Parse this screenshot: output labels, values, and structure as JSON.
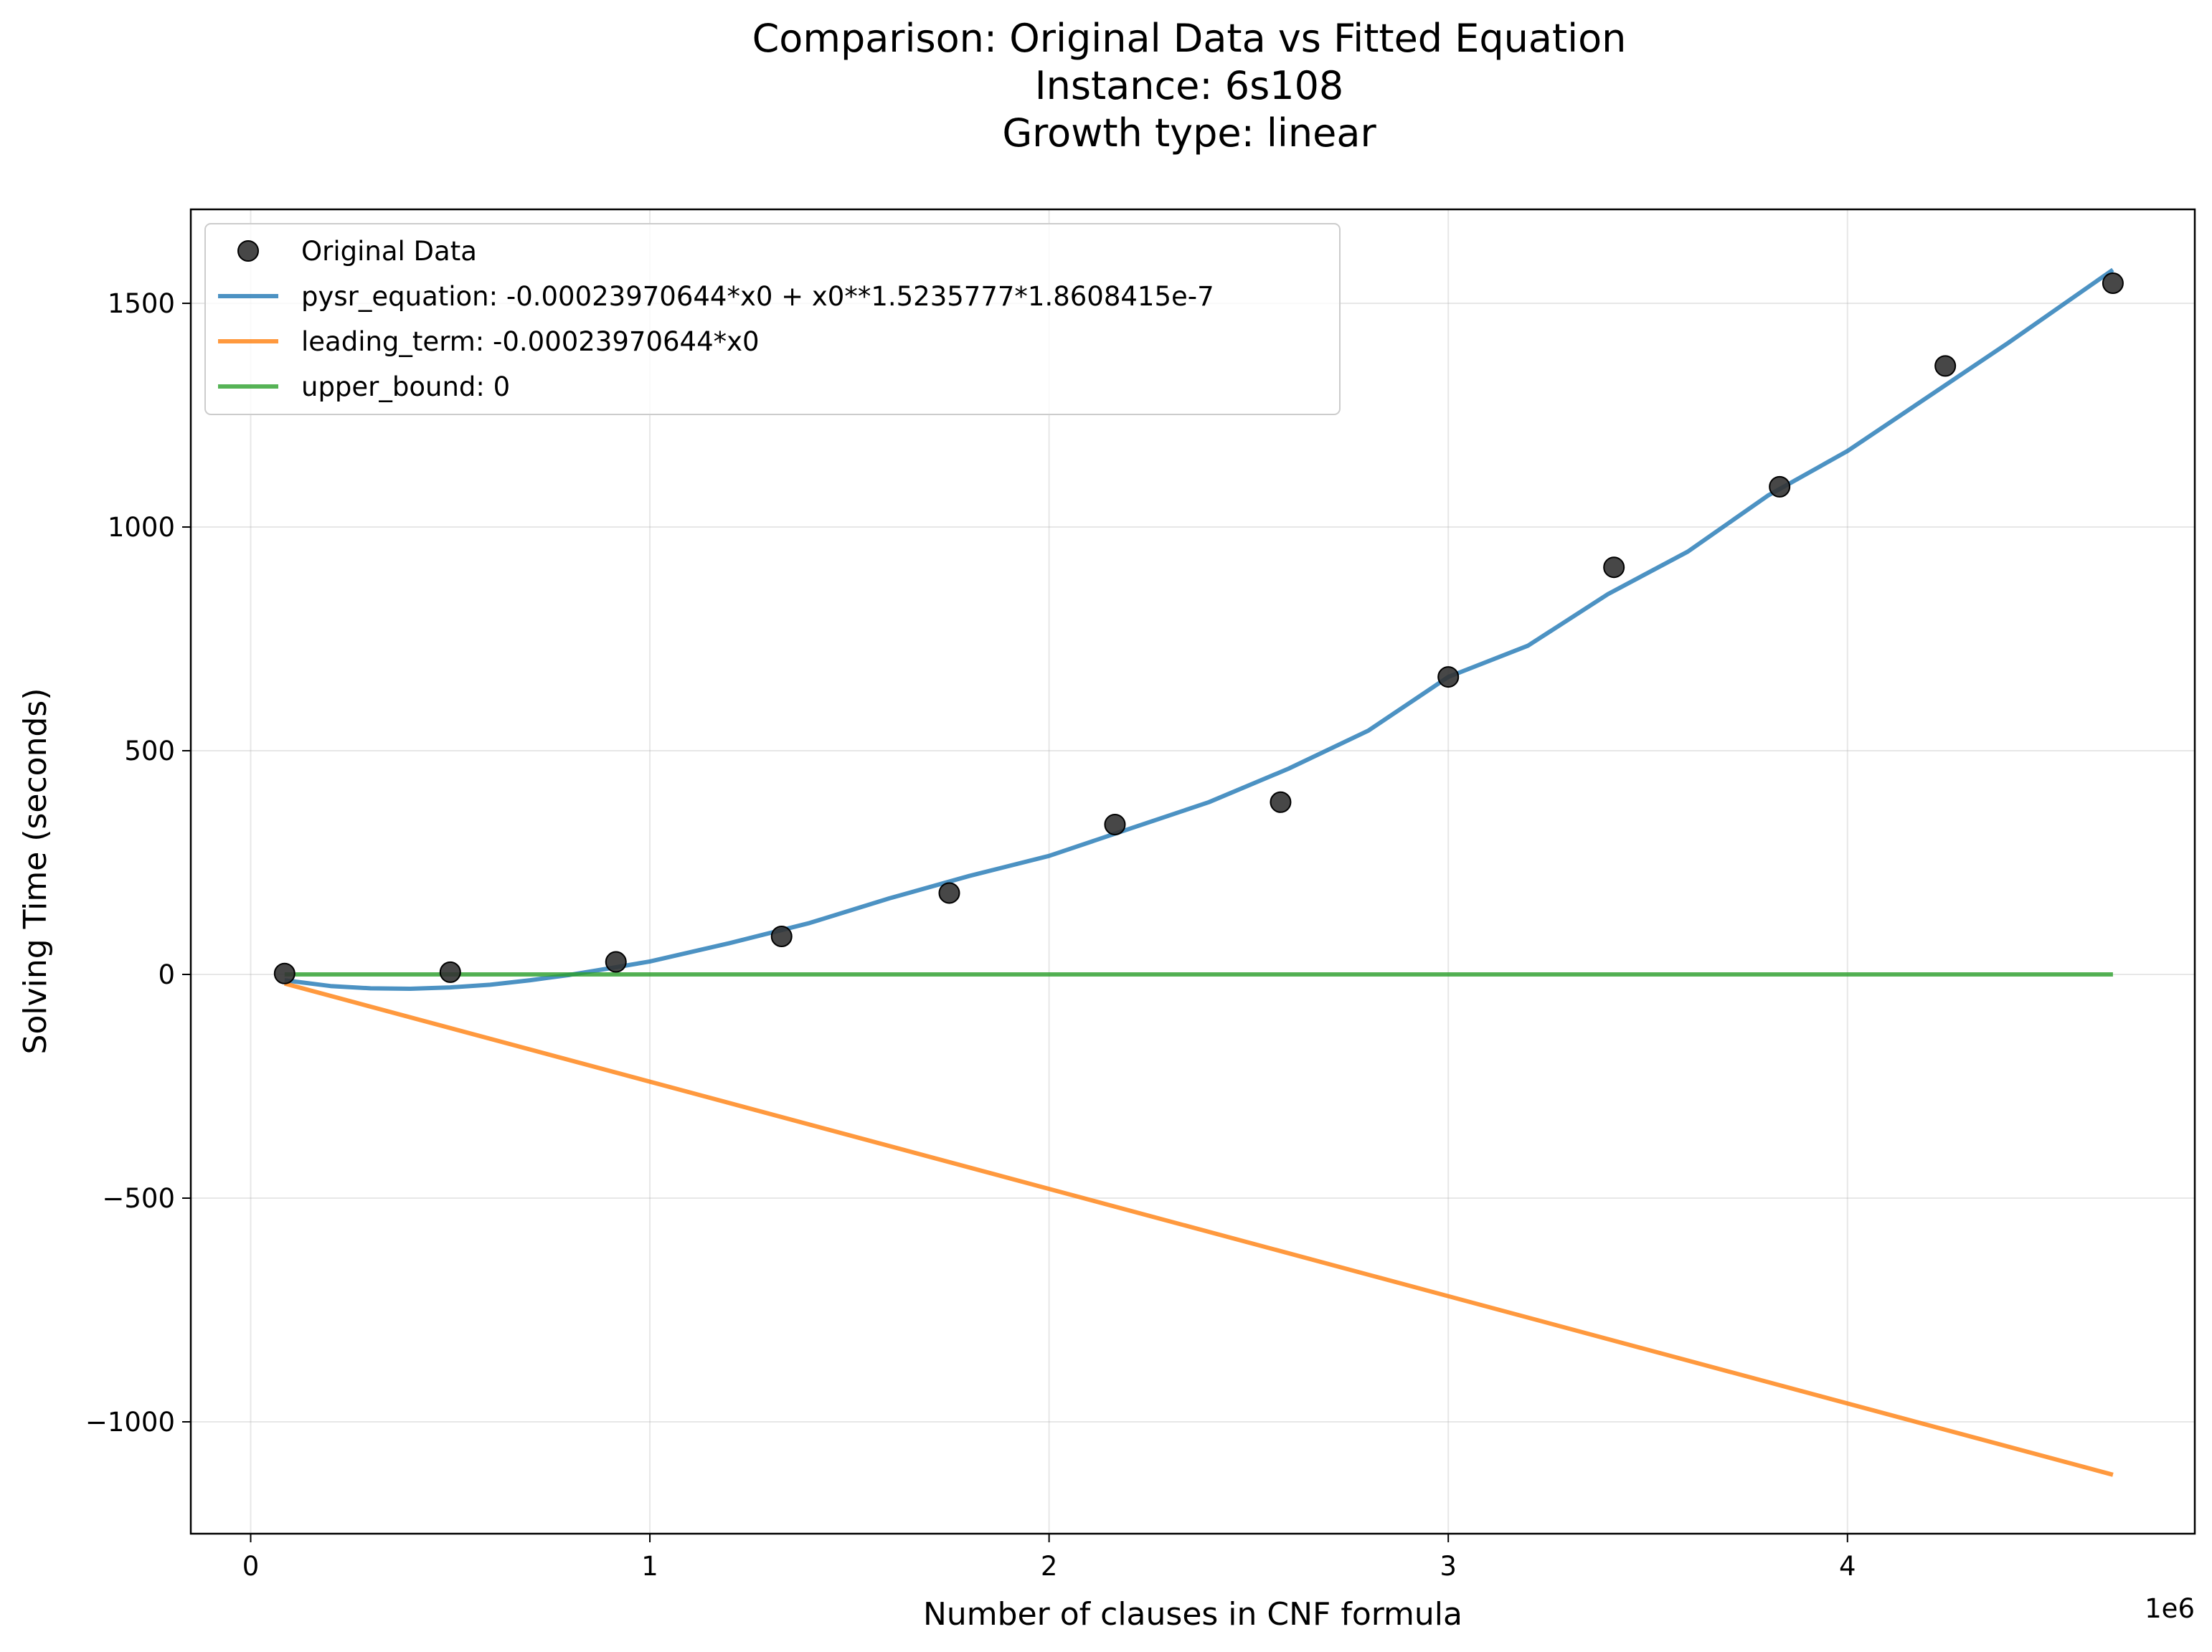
{
  "chart_data": {
    "type": "line",
    "title_lines": [
      "Comparison: Original Data vs Fitted Equation",
      "Instance: 6s108",
      "Growth type: linear"
    ],
    "xlabel": "Number of clauses in CNF formula",
    "ylabel": "Solving Time (seconds)",
    "x_offset_text": "1e6",
    "xlim": [
      -0.15,
      4.87
    ],
    "ylim": [
      -1250,
      1710
    ],
    "x_ticks": [
      0,
      1,
      2,
      3,
      4
    ],
    "x_tick_labels": [
      "0",
      "1",
      "2",
      "3",
      "4"
    ],
    "y_ticks": [
      -1000,
      -500,
      0,
      500,
      1000,
      1500
    ],
    "y_tick_labels": [
      "−1000",
      "−500",
      "0",
      "500",
      "1000",
      "1500"
    ],
    "grid": true,
    "legend_position": "top-left",
    "scatter": {
      "name": "Original Data",
      "color": "#333333",
      "x": [
        0.085,
        0.5,
        0.915,
        1.33,
        1.75,
        2.165,
        2.58,
        3.0,
        3.415,
        3.83,
        4.245,
        4.665
      ],
      "y": [
        2,
        5,
        28,
        85,
        182,
        335,
        385,
        665,
        910,
        1090,
        1360,
        1545
      ]
    },
    "series": [
      {
        "name": "pysr_equation: -0.00023970644*x0 + x0**1.5235777*1.8608415e-7",
        "color": "#1f77b4",
        "x": [
          0.085,
          0.2,
          0.3,
          0.4,
          0.5,
          0.6,
          0.7,
          0.8,
          0.915,
          1.0,
          1.2,
          1.4,
          1.6,
          1.8,
          2.0,
          2.2,
          2.4,
          2.6,
          2.8,
          3.0,
          3.2,
          3.4,
          3.6,
          3.8,
          4.0,
          4.2,
          4.4,
          4.665
        ],
        "y": [
          -13,
          -26,
          -31,
          -32,
          -29,
          -23,
          -13,
          -1,
          16,
          29,
          70,
          115,
          170,
          220,
          265,
          325,
          385,
          460,
          545,
          665,
          735,
          850,
          945,
          1070,
          1170,
          1290,
          1410,
          1575
        ]
      },
      {
        "name": "leading_term: -0.00023970644*x0",
        "color": "#ff7f0e",
        "x": [
          0.085,
          4.665
        ],
        "y": [
          -20.4,
          -1118.2
        ]
      },
      {
        "name": "upper_bound: 0",
        "color": "#2ca02c",
        "x": [
          0.085,
          4.665
        ],
        "y": [
          0,
          0
        ]
      }
    ]
  }
}
